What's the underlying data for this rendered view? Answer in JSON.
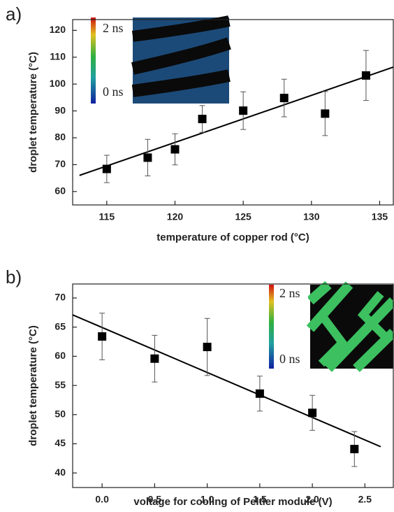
{
  "chart_data": [
    {
      "type": "scatter",
      "panel_label": "a)",
      "x_label": "temperature of copper rod (°C)",
      "y_label": "droplet temperature (°C)",
      "x": [
        115,
        118,
        120,
        122,
        125,
        128,
        131,
        134
      ],
      "series": [
        {
          "color": "#000000",
          "values": [
            68.4,
            72.6,
            75.7,
            87,
            90.1,
            94.8,
            89,
            103.2
          ],
          "errors": [
            5.1,
            6.8,
            5.8,
            5,
            7,
            7,
            8.2,
            9.3
          ]
        }
      ],
      "fit_line": {
        "color": "#000000",
        "x": [
          113,
          136
        ],
        "y": [
          66,
          106.3
        ]
      },
      "xlim": [
        112.5,
        136
      ],
      "xticks": [
        115,
        120,
        125,
        130,
        135
      ],
      "ylim": [
        55,
        124
      ],
      "yticks": [
        60,
        70,
        80,
        90,
        100,
        110,
        120
      ],
      "inset_labels": [
        "2 ns",
        "0 ns"
      ]
    },
    {
      "type": "scatter",
      "panel_label": "b)",
      "x_label": "voltage for cooling of Peltier module (V)",
      "y_label": "droplet temperature (°C)",
      "x": [
        0,
        0.5,
        1,
        1.5,
        2,
        2.4
      ],
      "series": [
        {
          "color": "#000000",
          "values": [
            63.4,
            59.6,
            61.6,
            53.6,
            50.3,
            44.1
          ],
          "errors": [
            4,
            4,
            4.9,
            3,
            3,
            3
          ]
        }
      ],
      "fit_line": {
        "color": "#000000",
        "x": [
          -0.28,
          2.65
        ],
        "y": [
          67.1,
          44.5
        ]
      },
      "xlim": [
        -0.28,
        2.77
      ],
      "xticks": [
        {
          "value": 0,
          "label": "0.0"
        },
        0.5,
        {
          "value": 1,
          "label": "1.0"
        },
        1.5,
        {
          "value": 2,
          "label": "2.0"
        },
        2.5
      ],
      "ylim": [
        37.5,
        72.4
      ],
      "yticks": [
        40,
        45,
        50,
        55,
        60,
        65,
        70
      ],
      "inset_labels": [
        "2 ns",
        "0 ns"
      ]
    }
  ]
}
